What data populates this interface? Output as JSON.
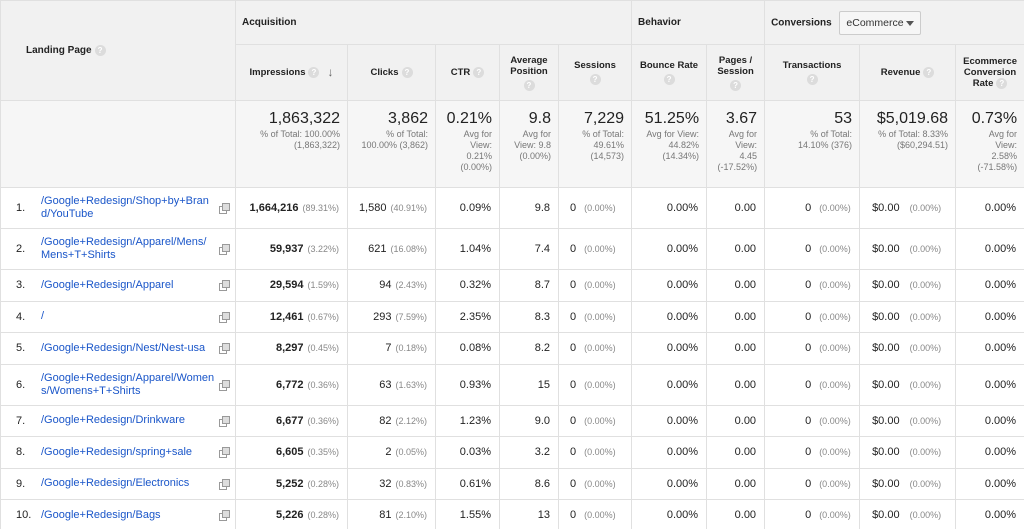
{
  "groups": {
    "acquisition": "Acquisition",
    "behavior": "Behavior",
    "conversions": "Conversions",
    "conversions_select": "eCommerce"
  },
  "columns": {
    "landing_page": "Landing Page",
    "impressions": "Impressions",
    "clicks": "Clicks",
    "ctr": "CTR",
    "avg_position": "Average Position",
    "sessions": "Sessions",
    "bounce_rate": "Bounce Rate",
    "pages_session": "Pages / Session",
    "transactions": "Transactions",
    "revenue": "Revenue",
    "conv_rate": "Ecommerce Conversion Rate"
  },
  "totals": {
    "impressions": {
      "value": "1,863,322",
      "l1": "% of Total: 100.00%",
      "l2": "(1,863,322)"
    },
    "clicks": {
      "value": "3,862",
      "l1": "% of Total:",
      "l2": "100.00% (3,862)"
    },
    "ctr": {
      "value": "0.21%",
      "l1": "Avg for",
      "l2": "View:",
      "l3": "0.21%",
      "l4": "(0.00%)"
    },
    "avg_position": {
      "value": "9.8",
      "l1": "Avg for",
      "l2": "View: 9.8",
      "l3": "(0.00%)"
    },
    "sessions": {
      "value": "7,229",
      "l1": "% of Total:",
      "l2": "49.61%",
      "l3": "(14,573)"
    },
    "bounce_rate": {
      "value": "51.25%",
      "l1": "Avg for View:",
      "l2": "44.82%",
      "l3": "(14.34%)"
    },
    "pages_session": {
      "value": "3.67",
      "l1": "Avg for",
      "l2": "View:",
      "l3": "4.45",
      "l4": "(-17.52%)"
    },
    "transactions": {
      "value": "53",
      "l1": "% of Total:",
      "l2": "14.10% (376)"
    },
    "revenue": {
      "value": "$5,019.68",
      "l1": "% of Total: 8.33%",
      "l2": "($60,294.51)"
    },
    "conv_rate": {
      "value": "0.73%",
      "l1": "Avg for",
      "l2": "View:",
      "l3": "2.58%",
      "l4": "(-71.58%)"
    }
  },
  "rows": [
    {
      "idx": "1.",
      "page": "/Google+Redesign/Shop+by+Brand/YouTube",
      "impr": "1,664,216",
      "impr_pct": "(89.31%)",
      "clicks": "1,580",
      "clicks_pct": "(40.91%)",
      "ctr": "0.09%",
      "pos": "9.8",
      "sessions": "0",
      "sessions_pct": "(0.00%)",
      "bounce": "0.00%",
      "pps": "0.00",
      "trans": "0",
      "trans_pct": "(0.00%)",
      "rev": "$0.00",
      "rev_pct": "(0.00%)",
      "conv": "0.00%"
    },
    {
      "idx": "2.",
      "page": "/Google+Redesign/Apparel/Mens/Mens+T+Shirts",
      "impr": "59,937",
      "impr_pct": "(3.22%)",
      "clicks": "621",
      "clicks_pct": "(16.08%)",
      "ctr": "1.04%",
      "pos": "7.4",
      "sessions": "0",
      "sessions_pct": "(0.00%)",
      "bounce": "0.00%",
      "pps": "0.00",
      "trans": "0",
      "trans_pct": "(0.00%)",
      "rev": "$0.00",
      "rev_pct": "(0.00%)",
      "conv": "0.00%"
    },
    {
      "idx": "3.",
      "page": "/Google+Redesign/Apparel",
      "impr": "29,594",
      "impr_pct": "(1.59%)",
      "clicks": "94",
      "clicks_pct": "(2.43%)",
      "ctr": "0.32%",
      "pos": "8.7",
      "sessions": "0",
      "sessions_pct": "(0.00%)",
      "bounce": "0.00%",
      "pps": "0.00",
      "trans": "0",
      "trans_pct": "(0.00%)",
      "rev": "$0.00",
      "rev_pct": "(0.00%)",
      "conv": "0.00%"
    },
    {
      "idx": "4.",
      "page": "/",
      "impr": "12,461",
      "impr_pct": "(0.67%)",
      "clicks": "293",
      "clicks_pct": "(7.59%)",
      "ctr": "2.35%",
      "pos": "8.3",
      "sessions": "0",
      "sessions_pct": "(0.00%)",
      "bounce": "0.00%",
      "pps": "0.00",
      "trans": "0",
      "trans_pct": "(0.00%)",
      "rev": "$0.00",
      "rev_pct": "(0.00%)",
      "conv": "0.00%"
    },
    {
      "idx": "5.",
      "page": "/Google+Redesign/Nest/Nest-usa",
      "impr": "8,297",
      "impr_pct": "(0.45%)",
      "clicks": "7",
      "clicks_pct": "(0.18%)",
      "ctr": "0.08%",
      "pos": "8.2",
      "sessions": "0",
      "sessions_pct": "(0.00%)",
      "bounce": "0.00%",
      "pps": "0.00",
      "trans": "0",
      "trans_pct": "(0.00%)",
      "rev": "$0.00",
      "rev_pct": "(0.00%)",
      "conv": "0.00%"
    },
    {
      "idx": "6.",
      "page": "/Google+Redesign/Apparel/Womens/Womens+T+Shirts",
      "impr": "6,772",
      "impr_pct": "(0.36%)",
      "clicks": "63",
      "clicks_pct": "(1.63%)",
      "ctr": "0.93%",
      "pos": "15",
      "sessions": "0",
      "sessions_pct": "(0.00%)",
      "bounce": "0.00%",
      "pps": "0.00",
      "trans": "0",
      "trans_pct": "(0.00%)",
      "rev": "$0.00",
      "rev_pct": "(0.00%)",
      "conv": "0.00%"
    },
    {
      "idx": "7.",
      "page": "/Google+Redesign/Drinkware",
      "impr": "6,677",
      "impr_pct": "(0.36%)",
      "clicks": "82",
      "clicks_pct": "(2.12%)",
      "ctr": "1.23%",
      "pos": "9.0",
      "sessions": "0",
      "sessions_pct": "(0.00%)",
      "bounce": "0.00%",
      "pps": "0.00",
      "trans": "0",
      "trans_pct": "(0.00%)",
      "rev": "$0.00",
      "rev_pct": "(0.00%)",
      "conv": "0.00%"
    },
    {
      "idx": "8.",
      "page": "/Google+Redesign/spring+sale",
      "impr": "6,605",
      "impr_pct": "(0.35%)",
      "clicks": "2",
      "clicks_pct": "(0.05%)",
      "ctr": "0.03%",
      "pos": "3.2",
      "sessions": "0",
      "sessions_pct": "(0.00%)",
      "bounce": "0.00%",
      "pps": "0.00",
      "trans": "0",
      "trans_pct": "(0.00%)",
      "rev": "$0.00",
      "rev_pct": "(0.00%)",
      "conv": "0.00%"
    },
    {
      "idx": "9.",
      "page": "/Google+Redesign/Electronics",
      "impr": "5,252",
      "impr_pct": "(0.28%)",
      "clicks": "32",
      "clicks_pct": "(0.83%)",
      "ctr": "0.61%",
      "pos": "8.6",
      "sessions": "0",
      "sessions_pct": "(0.00%)",
      "bounce": "0.00%",
      "pps": "0.00",
      "trans": "0",
      "trans_pct": "(0.00%)",
      "rev": "$0.00",
      "rev_pct": "(0.00%)",
      "conv": "0.00%"
    },
    {
      "idx": "10.",
      "page": "/Google+Redesign/Bags",
      "impr": "5,226",
      "impr_pct": "(0.28%)",
      "clicks": "81",
      "clicks_pct": "(2.10%)",
      "ctr": "1.55%",
      "pos": "13",
      "sessions": "0",
      "sessions_pct": "(0.00%)",
      "bounce": "0.00%",
      "pps": "0.00",
      "trans": "0",
      "trans_pct": "(0.00%)",
      "rev": "$0.00",
      "rev_pct": "(0.00%)",
      "conv": "0.00%"
    }
  ]
}
